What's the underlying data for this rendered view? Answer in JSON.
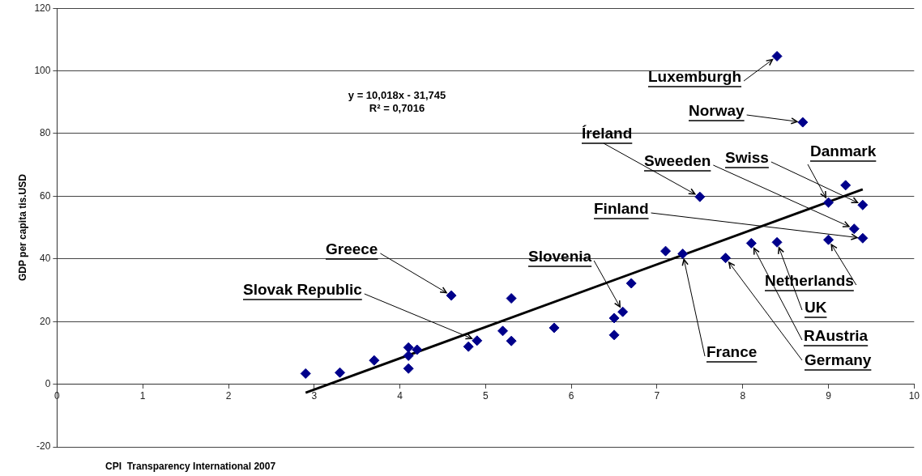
{
  "chart_data": {
    "type": "scatter",
    "xlabel": "CPI  Transparency International 2007",
    "ylabel": "GDP per capita tis.USD",
    "xlim": [
      0,
      10
    ],
    "xticks": [
      0,
      1,
      2,
      3,
      4,
      5,
      6,
      7,
      8,
      9,
      10
    ],
    "ylim": [
      -20,
      120
    ],
    "yticks": [
      -20,
      0,
      20,
      40,
      60,
      80,
      100,
      120
    ],
    "grid": "y",
    "series": [
      {
        "type": "scatter",
        "color": "#00008b",
        "marker": "diamond",
        "x": [
          2.9,
          3.3,
          3.7,
          4.1,
          4.1,
          4.1,
          4.2,
          4.6,
          4.8,
          4.9,
          5.2,
          5.3,
          5.3,
          5.8,
          6.5,
          6.5,
          6.6,
          6.7,
          7.1,
          7.3,
          7.5,
          7.8,
          8.1,
          8.4,
          8.4,
          8.7,
          9.0,
          9.2,
          9.4,
          9.3,
          9.4,
          9.0
        ],
        "values": [
          3.4,
          3.7,
          7.6,
          11.7,
          9.1,
          5.0,
          11.0,
          28.3,
          12.0,
          13.9,
          17.0,
          13.8,
          27.4,
          18.0,
          21.1,
          15.7,
          23.1,
          32.2,
          42.5,
          41.6,
          59.8,
          40.3,
          45.0,
          45.3,
          104.7,
          83.6,
          58.0,
          63.5,
          57.2,
          49.6,
          46.6,
          46.1
        ]
      },
      {
        "type": "line",
        "color": "#000000",
        "marker": "none",
        "line_style": "solid",
        "x": [
          2.9,
          9.4
        ],
        "values": [
          -2.7,
          62.2
        ]
      }
    ],
    "annotations": [
      "y = 10,018x - 31,745",
      "R² = 0,7016",
      {
        "text": "Luxemburgh",
        "x": 8.4,
        "y": 104.7
      },
      {
        "text": "Norway",
        "x": 8.7,
        "y": 83.6
      },
      {
        "text": "Íreland",
        "x": 7.5,
        "y": 59.8
      },
      {
        "text": "Sweeden",
        "x": 9.3,
        "y": 49.6
      },
      {
        "text": "Swiss",
        "x": 9.4,
        "y": 57.2
      },
      {
        "text": "Danmark",
        "x": 9.0,
        "y": 58.0
      },
      {
        "text": "Finland",
        "x": 9.4,
        "y": 46.6
      },
      {
        "text": "Netherlands",
        "x": 9.0,
        "y": 46.1
      },
      {
        "text": "UK",
        "x": 8.4,
        "y": 45.3
      },
      {
        "text": "RAustria",
        "x": 8.1,
        "y": 45.0
      },
      {
        "text": "Germany",
        "x": 7.8,
        "y": 40.3
      },
      {
        "text": "France",
        "x": 7.3,
        "y": 41.6
      },
      {
        "text": "Slovenia",
        "x": 6.6,
        "y": 23.1
      },
      {
        "text": "Greece",
        "x": 4.6,
        "y": 28.3
      },
      {
        "text": "Slovak Republic",
        "x": 4.9,
        "y": 13.9
      }
    ]
  }
}
